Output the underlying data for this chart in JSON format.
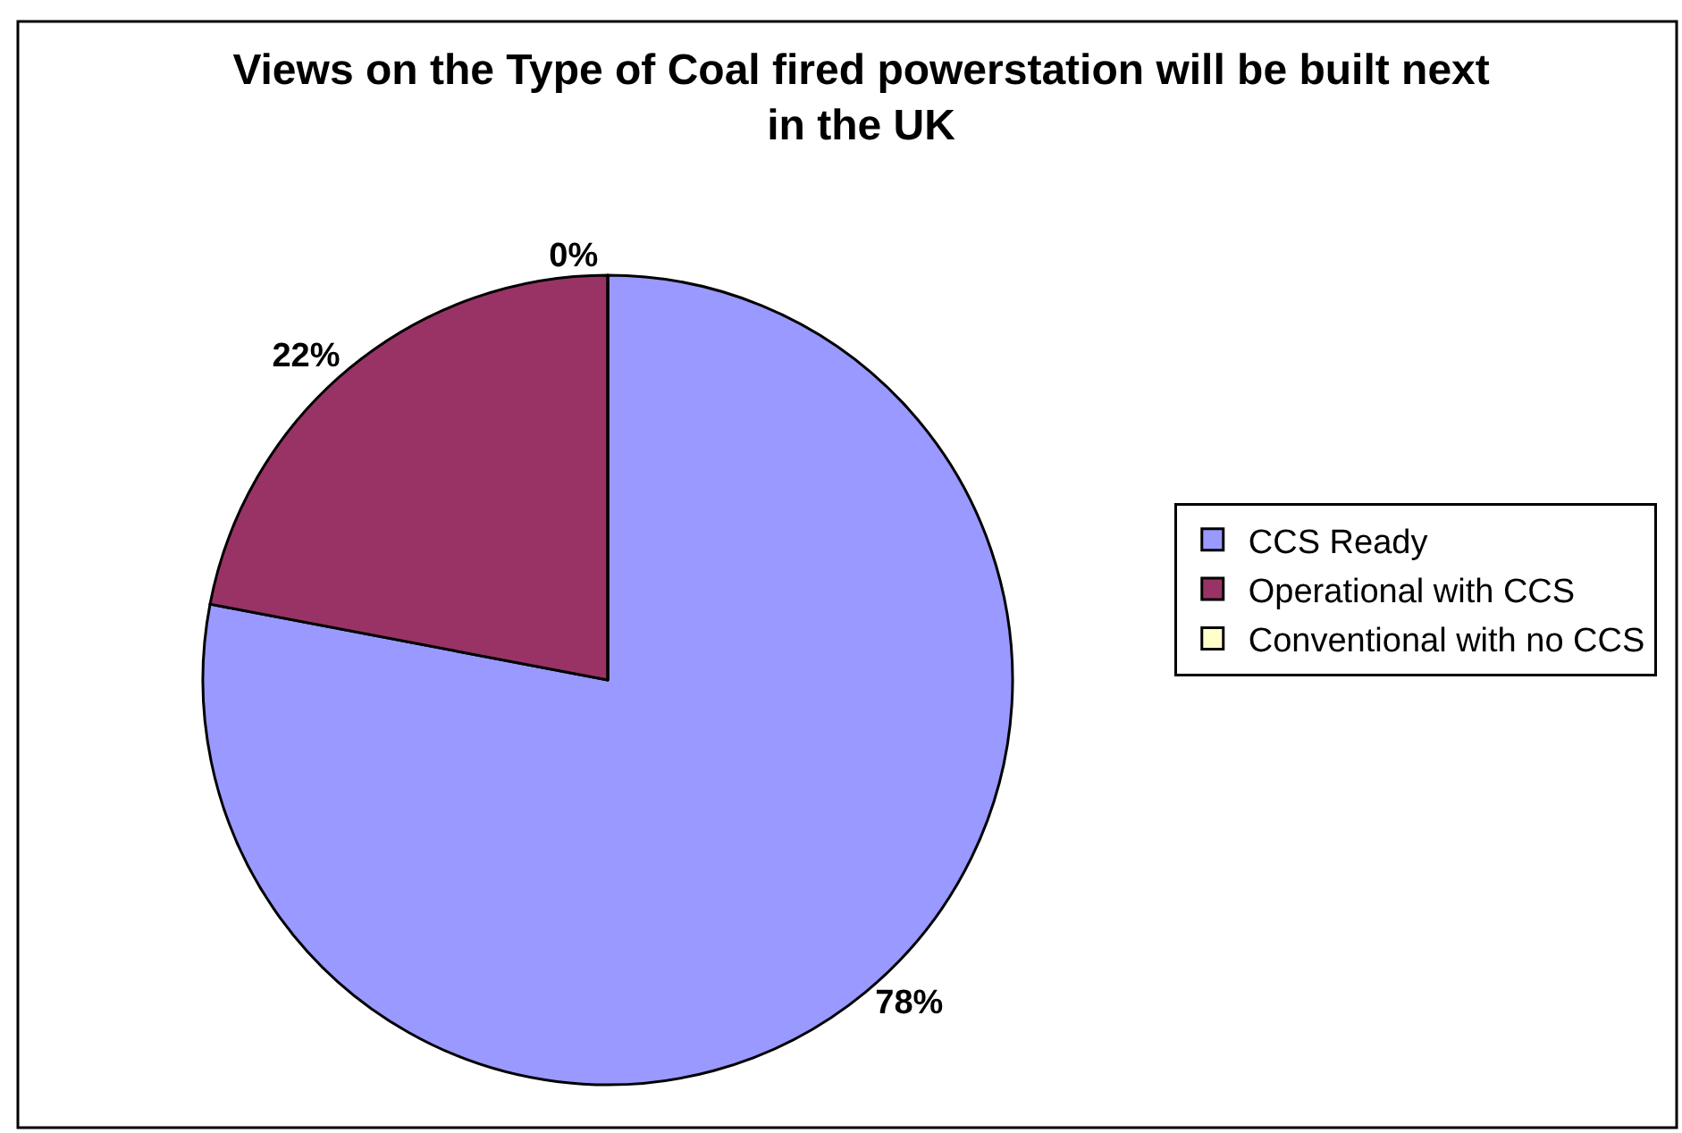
{
  "chart_data": {
    "type": "pie",
    "title": "Views on the Type of Coal fired powerstation will be built next\nin the UK",
    "categories": [
      "CCS Ready",
      "Operational with CCS",
      "Conventional with no CCS"
    ],
    "values": [
      78,
      22,
      0
    ],
    "colors": [
      "#9999ff",
      "#993366",
      "#ffffcc"
    ],
    "value_labels": [
      "78%",
      "22%",
      "0%"
    ],
    "legend": "right"
  }
}
